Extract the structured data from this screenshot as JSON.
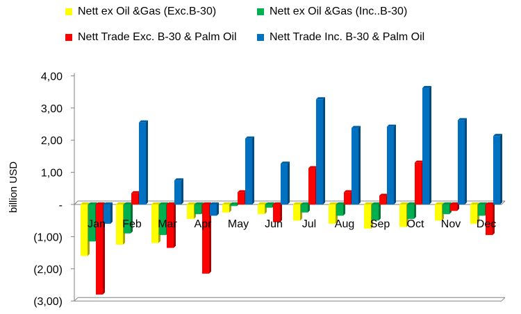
{
  "chart_data": {
    "type": "bar",
    "ylabel": "billion USD",
    "categories": [
      "Jan",
      "Feb",
      "Mar",
      "Apr",
      "May",
      "Jun",
      "Jul",
      "Aug",
      "Sep",
      "Oct",
      "Nov",
      "Dec"
    ],
    "y_ticks": [
      "4,00",
      "3,00",
      "2,00",
      "1,00",
      "-",
      "(1,00)",
      "(2,00)",
      "(3,00)"
    ],
    "ylim": [
      -3,
      4
    ],
    "legend_position": "top",
    "grid": false,
    "series": [
      {
        "name": "Nett ex Oil &Gas (Exc.B-30)",
        "color": "#ffff00",
        "values": [
          -1.6,
          -1.25,
          -1.2,
          -0.45,
          -0.25,
          -0.3,
          -0.5,
          -0.6,
          -0.75,
          -0.7,
          -0.5,
          -0.6
        ]
      },
      {
        "name": "Nett ex Oil &Gas (Inc..B-30)",
        "color": "#00b050",
        "values": [
          -1.15,
          -0.9,
          -0.95,
          -0.3,
          -0.05,
          -0.1,
          -0.25,
          -0.35,
          -0.5,
          -0.45,
          -0.3,
          -0.35
        ]
      },
      {
        "name": "Nett Trade Exc. B-30 & Palm Oil",
        "color": "#ff0000",
        "values": [
          -2.8,
          0.35,
          -1.35,
          -2.15,
          0.38,
          -0.55,
          1.13,
          0.38,
          0.27,
          1.3,
          -0.2,
          -0.95
        ]
      },
      {
        "name": "Nett Trade Inc. B-30 & Palm Oil",
        "color": "#0070c0",
        "values": [
          -0.6,
          2.55,
          0.75,
          -0.35,
          2.05,
          1.27,
          3.27,
          2.38,
          2.42,
          3.62,
          2.62,
          2.13
        ]
      }
    ]
  }
}
